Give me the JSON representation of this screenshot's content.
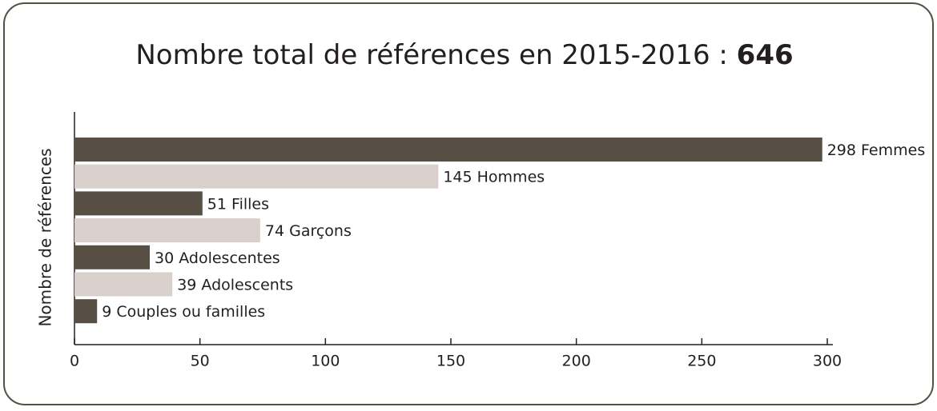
{
  "chart_data": {
    "type": "bar",
    "orientation": "horizontal",
    "title": "Nombre total de références en 2015-2016 :",
    "total": 646,
    "y_label": "Nombre de références",
    "categories": [
      "Femmes",
      "Hommes",
      "Filles",
      "Garçons",
      "Adolescentes",
      "Adolescents",
      "Couples ou familles"
    ],
    "values": [
      298,
      145,
      51,
      74,
      30,
      39,
      9
    ],
    "colors": [
      "#574e44",
      "#d9d0cc",
      "#574e44",
      "#d9d0cc",
      "#574e44",
      "#d9d0cc",
      "#574e44"
    ],
    "xlim": [
      0,
      300
    ],
    "xticks": [
      0,
      50,
      100,
      150,
      200,
      250,
      300
    ],
    "grid": false
  }
}
